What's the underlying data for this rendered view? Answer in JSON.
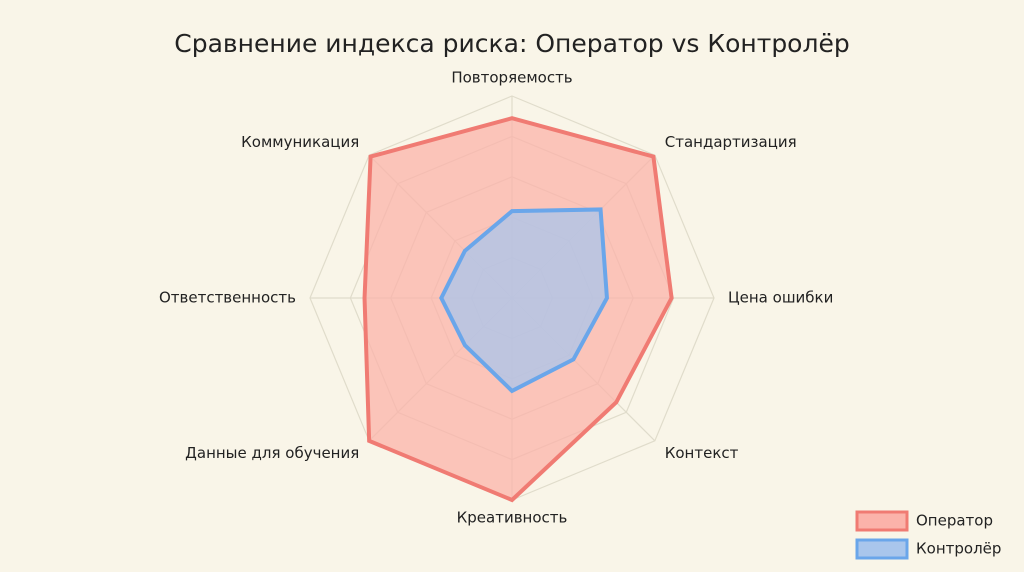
{
  "chart_data": {
    "type": "radar",
    "title": "Сравнение индекса риска: Оператор vs Контролёр",
    "categories": [
      "Повторяемость",
      "Стандартизация",
      "Цена ошибки",
      "Контекст",
      "Креативность",
      "Данные для обучения",
      "Ответственность",
      "Коммуникация"
    ],
    "series": [
      {
        "name": "Оператор",
        "color": "#f07b73",
        "fill": "#fbb3aa",
        "values": [
          8.9,
          9.9,
          7.9,
          7.3,
          10,
          10,
          7.3,
          9.9
        ]
      },
      {
        "name": "Контролёр",
        "color": "#6aa6ea",
        "fill": "#a9c6ec",
        "values": [
          4.3,
          6.2,
          4.7,
          4.3,
          4.6,
          3.3,
          3.5,
          3.3
        ]
      }
    ],
    "rlim": [
      0,
      10
    ],
    "rticks": [
      2,
      4,
      6,
      8,
      10
    ],
    "grid": true,
    "legend": "lower right"
  }
}
